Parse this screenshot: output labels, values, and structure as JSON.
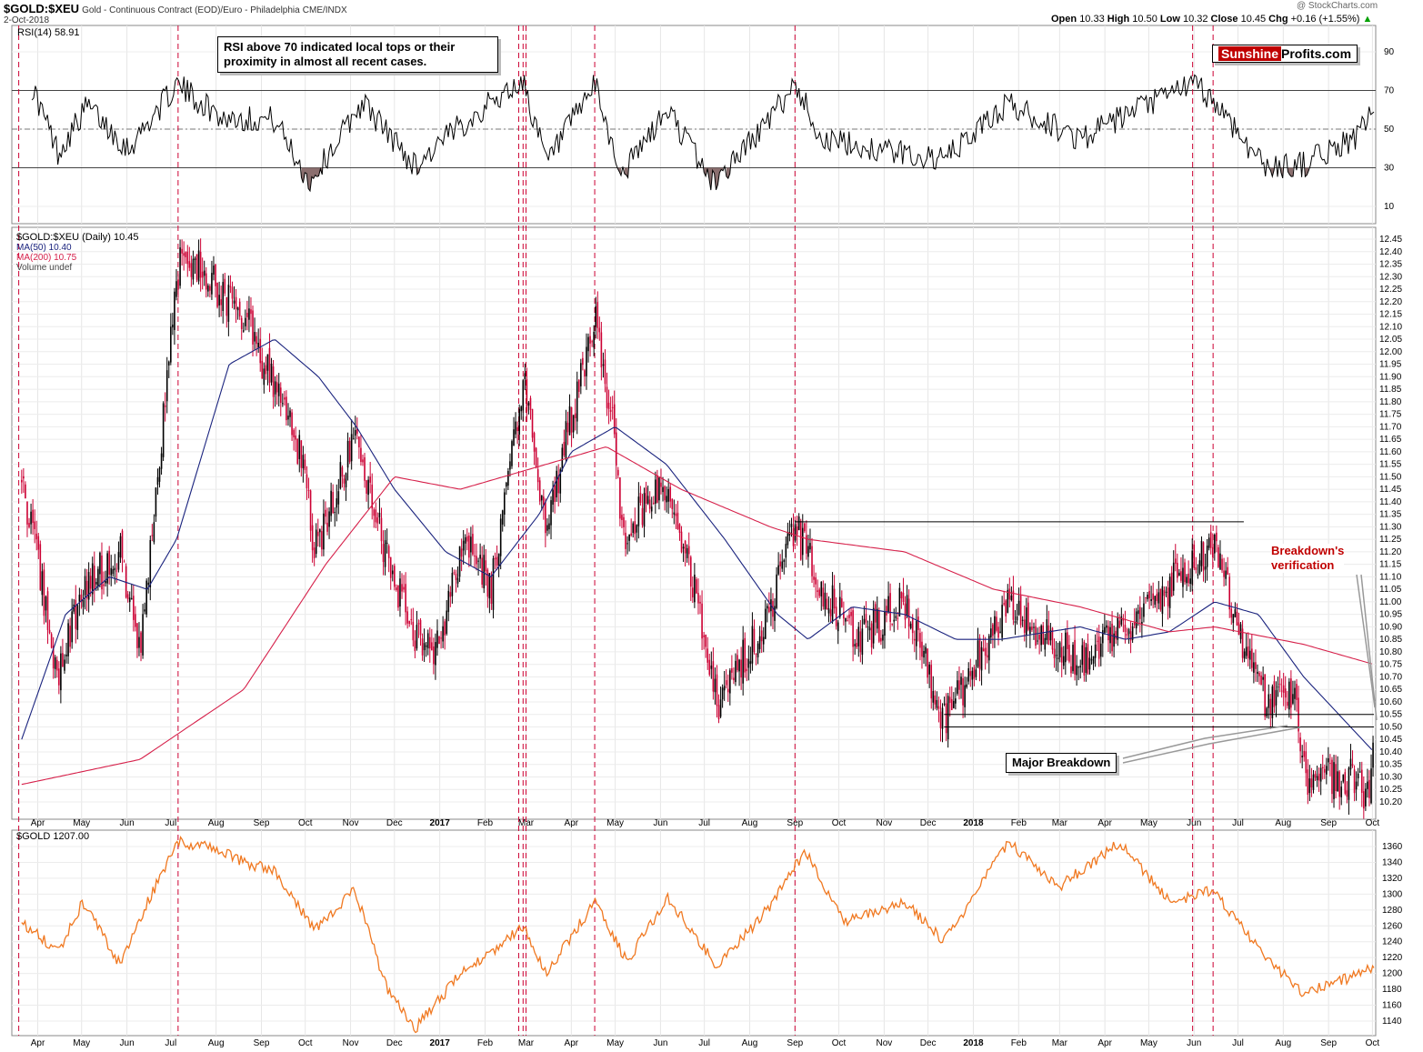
{
  "header": {
    "ticker": "$GOLD:$XEU",
    "description": "Gold - Continuous Contract (EOD)/Euro - Philadelphia",
    "exchange": "CME/INDX",
    "date": "2-Oct-2018",
    "watermark": "@ StockCharts.com",
    "quote": {
      "open_label": "Open",
      "open": "10.33",
      "high_label": "High",
      "high": "10.50",
      "low_label": "Low",
      "low": "10.32",
      "close_label": "Close",
      "close": "10.45",
      "chg_label": "Chg",
      "chg": "+0.16 (+1.55%)",
      "arrow": "▲"
    }
  },
  "rsi_panel": {
    "label": "RSI(14) 58.91",
    "annotation_line1": "RSI above 70 indicated local tops or their",
    "annotation_line2": "proximity in almost all recent cases.",
    "ticks": [
      "90",
      "70",
      "50",
      "30",
      "10"
    ]
  },
  "brand": {
    "part1": "Sunshine",
    "part2": "Profits.com"
  },
  "price_panel": {
    "legend": {
      "symbol": "$GOLD:$XEU (Daily) 10.45",
      "ma50": "MA(50) 10.40",
      "ma200": "MA(200) 10.75",
      "volume": "Volume undef"
    },
    "annotation_breakdown": "Major Breakdown",
    "annotation_verification_line1": "Breakdown's",
    "annotation_verification_line2": "verification",
    "ticks": [
      "12.45",
      "12.40",
      "12.35",
      "12.30",
      "12.25",
      "12.20",
      "12.15",
      "12.10",
      "12.05",
      "12.00",
      "11.95",
      "11.90",
      "11.85",
      "11.80",
      "11.75",
      "11.70",
      "11.65",
      "11.60",
      "11.55",
      "11.50",
      "11.45",
      "11.40",
      "11.35",
      "11.30",
      "11.25",
      "11.20",
      "11.15",
      "11.10",
      "11.05",
      "11.00",
      "10.95",
      "10.90",
      "10.85",
      "10.80",
      "10.75",
      "10.70",
      "10.65",
      "10.60",
      "10.55",
      "10.50",
      "10.45",
      "10.40",
      "10.35",
      "10.30",
      "10.25",
      "10.20"
    ]
  },
  "gold_panel": {
    "label": "$GOLD 1207.00",
    "ticks": [
      "1360",
      "1340",
      "1320",
      "1300",
      "1280",
      "1260",
      "1240",
      "1220",
      "1200",
      "1180",
      "1160",
      "1140"
    ]
  },
  "months": [
    "Apr",
    "May",
    "Jun",
    "Jul",
    "Aug",
    "Sep",
    "Oct",
    "Nov",
    "Dec",
    "2017",
    "Feb",
    "Mar",
    "Apr",
    "May",
    "Jun",
    "Jul",
    "Aug",
    "Sep",
    "Oct",
    "Nov",
    "Dec",
    "2018",
    "Feb",
    "Mar",
    "Apr",
    "May",
    "Jun",
    "Jul",
    "Aug",
    "Sep",
    "Oct"
  ],
  "colors": {
    "up": "#000000",
    "down": "#cc0033",
    "ma50": "#1a237e",
    "ma200": "#d6204a",
    "gold": "#f07820",
    "vline": "#cc0033",
    "rsi": "#000000",
    "rsi_fill": "#8b6f6f"
  },
  "chart_data": [
    {
      "type": "line",
      "title": "RSI(14)",
      "series": [
        {
          "name": "RSI(14)",
          "last": 58.91
        }
      ],
      "ylim": [
        0,
        100
      ],
      "levels": [
        70,
        50,
        30
      ],
      "keypoints": [
        {
          "date": "2016-03-28",
          "rsi": 72
        },
        {
          "date": "2016-04-15",
          "rsi": 38
        },
        {
          "date": "2016-05-05",
          "rsi": 62
        },
        {
          "date": "2016-06-02",
          "rsi": 40
        },
        {
          "date": "2016-07-05",
          "rsi": 73
        },
        {
          "date": "2016-08-05",
          "rsi": 56
        },
        {
          "date": "2016-09-10",
          "rsi": 55
        },
        {
          "date": "2016-10-04",
          "rsi": 22
        },
        {
          "date": "2016-11-09",
          "rsi": 64
        },
        {
          "date": "2016-12-15",
          "rsi": 31
        },
        {
          "date": "2017-01-20",
          "rsi": 55
        },
        {
          "date": "2017-02-27",
          "rsi": 75
        },
        {
          "date": "2017-03-15",
          "rsi": 32
        },
        {
          "date": "2017-04-17",
          "rsi": 73
        },
        {
          "date": "2017-05-05",
          "rsi": 26
        },
        {
          "date": "2017-06-06",
          "rsi": 60
        },
        {
          "date": "2017-07-07",
          "rsi": 22
        },
        {
          "date": "2017-08-15",
          "rsi": 55
        },
        {
          "date": "2017-09-01",
          "rsi": 74
        },
        {
          "date": "2017-09-20",
          "rsi": 44
        },
        {
          "date": "2017-12-12",
          "rsi": 34
        },
        {
          "date": "2018-01-24",
          "rsi": 63
        },
        {
          "date": "2018-03-15",
          "rsi": 45
        },
        {
          "date": "2018-05-31",
          "rsi": 74
        },
        {
          "date": "2018-06-14",
          "rsi": 65
        },
        {
          "date": "2018-07-20",
          "rsi": 30
        },
        {
          "date": "2018-08-15",
          "rsi": 32
        },
        {
          "date": "2018-09-20",
          "rsi": 46
        },
        {
          "date": "2018-10-02",
          "rsi": 58.91
        }
      ]
    },
    {
      "type": "candlestick",
      "title": "$GOLD:$XEU (Daily)",
      "last_close": 10.45,
      "ylim": [
        10.15,
        12.47
      ],
      "series": [
        {
          "name": "$GOLD:$XEU",
          "keypoints": [
            {
              "date": "2016-03-21",
              "close": 11.5
            },
            {
              "date": "2016-04-15",
              "close": 10.7
            },
            {
              "date": "2016-05-02",
              "close": 11.05
            },
            {
              "date": "2016-05-27",
              "close": 11.2
            },
            {
              "date": "2016-06-10",
              "close": 10.8
            },
            {
              "date": "2016-07-01",
              "close": 12.05
            },
            {
              "date": "2016-07-08",
              "close": 12.4
            },
            {
              "date": "2016-08-02",
              "close": 12.25
            },
            {
              "date": "2016-08-20",
              "close": 12.15
            },
            {
              "date": "2016-09-10",
              "close": 11.85
            },
            {
              "date": "2016-10-01",
              "close": 11.55
            },
            {
              "date": "2016-10-07",
              "close": 11.2
            },
            {
              "date": "2016-11-04",
              "close": 11.65
            },
            {
              "date": "2016-11-25",
              "close": 11.2
            },
            {
              "date": "2016-12-15",
              "close": 10.85
            },
            {
              "date": "2016-12-28",
              "close": 10.8
            },
            {
              "date": "2017-01-20",
              "close": 11.25
            },
            {
              "date": "2017-02-05",
              "close": 11.05
            },
            {
              "date": "2017-02-27",
              "close": 11.9
            },
            {
              "date": "2017-03-15",
              "close": 11.3
            },
            {
              "date": "2017-04-17",
              "close": 12.15
            },
            {
              "date": "2017-05-02",
              "close": 11.6
            },
            {
              "date": "2017-05-05",
              "close": 11.25
            },
            {
              "date": "2017-06-06",
              "close": 11.5
            },
            {
              "date": "2017-06-20",
              "close": 11.15
            },
            {
              "date": "2017-07-10",
              "close": 10.6
            },
            {
              "date": "2017-08-15",
              "close": 10.95
            },
            {
              "date": "2017-09-01",
              "close": 11.3
            },
            {
              "date": "2017-09-20",
              "close": 11.05
            },
            {
              "date": "2017-10-15",
              "close": 10.85
            },
            {
              "date": "2017-11-15",
              "close": 11.0
            },
            {
              "date": "2017-12-12",
              "close": 10.52
            },
            {
              "date": "2018-01-25",
              "close": 11.0
            },
            {
              "date": "2018-03-15",
              "close": 10.75
            },
            {
              "date": "2018-04-15",
              "close": 10.9
            },
            {
              "date": "2018-05-31",
              "close": 11.15
            },
            {
              "date": "2018-06-14",
              "close": 11.25
            },
            {
              "date": "2018-06-28",
              "close": 10.95
            },
            {
              "date": "2018-07-20",
              "close": 10.6
            },
            {
              "date": "2018-08-10",
              "close": 10.65
            },
            {
              "date": "2018-08-15",
              "close": 10.3
            },
            {
              "date": "2018-09-15",
              "close": 10.3
            },
            {
              "date": "2018-09-28",
              "close": 10.22
            },
            {
              "date": "2018-10-02",
              "close": 10.45
            }
          ]
        },
        {
          "name": "MA(50)",
          "last": 10.4,
          "keypoints": [
            {
              "date": "2016-03-21",
              "value": 10.45
            },
            {
              "date": "2016-04-20",
              "value": 10.95
            },
            {
              "date": "2016-05-20",
              "value": 11.1
            },
            {
              "date": "2016-06-15",
              "value": 11.05
            },
            {
              "date": "2016-07-05",
              "value": 11.25
            },
            {
              "date": "2016-08-10",
              "value": 11.95
            },
            {
              "date": "2016-09-10",
              "value": 12.05
            },
            {
              "date": "2016-10-10",
              "value": 11.9
            },
            {
              "date": "2016-11-05",
              "value": 11.7
            },
            {
              "date": "2016-12-01",
              "value": 11.45
            },
            {
              "date": "2017-01-05",
              "value": 11.2
            },
            {
              "date": "2017-02-05",
              "value": 11.1
            },
            {
              "date": "2017-03-10",
              "value": 11.35
            },
            {
              "date": "2017-04-01",
              "value": 11.6
            },
            {
              "date": "2017-05-01",
              "value": 11.7
            },
            {
              "date": "2017-06-05",
              "value": 11.55
            },
            {
              "date": "2017-07-15",
              "value": 11.25
            },
            {
              "date": "2017-08-20",
              "value": 10.95
            },
            {
              "date": "2017-09-10",
              "value": 10.85
            },
            {
              "date": "2017-10-10",
              "value": 10.98
            },
            {
              "date": "2017-11-15",
              "value": 10.95
            },
            {
              "date": "2017-12-20",
              "value": 10.85
            },
            {
              "date": "2018-01-20",
              "value": 10.85
            },
            {
              "date": "2018-03-15",
              "value": 10.9
            },
            {
              "date": "2018-04-15",
              "value": 10.85
            },
            {
              "date": "2018-05-15",
              "value": 10.88
            },
            {
              "date": "2018-06-15",
              "value": 11.0
            },
            {
              "date": "2018-07-15",
              "value": 10.95
            },
            {
              "date": "2018-08-15",
              "value": 10.7
            },
            {
              "date": "2018-10-02",
              "value": 10.4
            }
          ]
        },
        {
          "name": "MA(200)",
          "last": 10.75,
          "keypoints": [
            {
              "date": "2016-03-21",
              "value": 10.27
            },
            {
              "date": "2016-06-10",
              "value": 10.37
            },
            {
              "date": "2016-08-20",
              "value": 10.65
            },
            {
              "date": "2016-10-15",
              "value": 11.15
            },
            {
              "date": "2016-12-01",
              "value": 11.5
            },
            {
              "date": "2017-01-15",
              "value": 11.45
            },
            {
              "date": "2017-03-15",
              "value": 11.55
            },
            {
              "date": "2017-04-25",
              "value": 11.62
            },
            {
              "date": "2017-06-15",
              "value": 11.45
            },
            {
              "date": "2017-08-15",
              "value": 11.3
            },
            {
              "date": "2017-09-10",
              "value": 11.25
            },
            {
              "date": "2017-11-15",
              "value": 11.2
            },
            {
              "date": "2018-01-15",
              "value": 11.05
            },
            {
              "date": "2018-03-15",
              "value": 10.98
            },
            {
              "date": "2018-05-15",
              "value": 10.88
            },
            {
              "date": "2018-06-15",
              "value": 10.9
            },
            {
              "date": "2018-08-15",
              "value": 10.83
            },
            {
              "date": "2018-10-02",
              "value": 10.75
            }
          ]
        }
      ],
      "horizontal_levels": [
        {
          "name": "resistance",
          "value": 11.32,
          "from": "2017-09-01",
          "to": "2018-07-05"
        },
        {
          "name": "support-upper",
          "value": 10.55,
          "from": "2017-12-12",
          "to": "2018-10-02"
        },
        {
          "name": "support-lower",
          "value": 10.5,
          "from": "2017-12-12",
          "to": "2018-10-02"
        }
      ],
      "annotations": [
        "Major Breakdown",
        "Breakdown's verification"
      ]
    },
    {
      "type": "line",
      "title": "$GOLD",
      "last": 1207.0,
      "ylim": [
        1130,
        1370
      ],
      "series": [
        {
          "name": "$GOLD",
          "keypoints": [
            {
              "date": "2016-03-21",
              "value": 1265
            },
            {
              "date": "2016-04-15",
              "value": 1228
            },
            {
              "date": "2016-05-02",
              "value": 1290
            },
            {
              "date": "2016-05-27",
              "value": 1212
            },
            {
              "date": "2016-06-10",
              "value": 1270
            },
            {
              "date": "2016-07-06",
              "value": 1366
            },
            {
              "date": "2016-08-02",
              "value": 1357
            },
            {
              "date": "2016-08-20",
              "value": 1340
            },
            {
              "date": "2016-09-10",
              "value": 1330
            },
            {
              "date": "2016-10-07",
              "value": 1255
            },
            {
              "date": "2016-11-04",
              "value": 1305
            },
            {
              "date": "2016-11-25",
              "value": 1185
            },
            {
              "date": "2016-12-15",
              "value": 1130
            },
            {
              "date": "2017-01-20",
              "value": 1210
            },
            {
              "date": "2017-02-05",
              "value": 1225
            },
            {
              "date": "2017-02-27",
              "value": 1260
            },
            {
              "date": "2017-03-15",
              "value": 1200
            },
            {
              "date": "2017-04-17",
              "value": 1290
            },
            {
              "date": "2017-05-09",
              "value": 1215
            },
            {
              "date": "2017-06-06",
              "value": 1295
            },
            {
              "date": "2017-07-10",
              "value": 1208
            },
            {
              "date": "2017-08-15",
              "value": 1285
            },
            {
              "date": "2017-09-08",
              "value": 1355
            },
            {
              "date": "2017-10-05",
              "value": 1265
            },
            {
              "date": "2017-11-15",
              "value": 1290
            },
            {
              "date": "2017-12-12",
              "value": 1240
            },
            {
              "date": "2018-01-25",
              "value": 1365
            },
            {
              "date": "2018-03-01",
              "value": 1310
            },
            {
              "date": "2018-04-11",
              "value": 1365
            },
            {
              "date": "2018-05-15",
              "value": 1290
            },
            {
              "date": "2018-06-14",
              "value": 1305
            },
            {
              "date": "2018-07-20",
              "value": 1220
            },
            {
              "date": "2018-08-15",
              "value": 1175
            },
            {
              "date": "2018-09-15",
              "value": 1195
            },
            {
              "date": "2018-10-02",
              "value": 1207
            }
          ]
        }
      ]
    }
  ]
}
